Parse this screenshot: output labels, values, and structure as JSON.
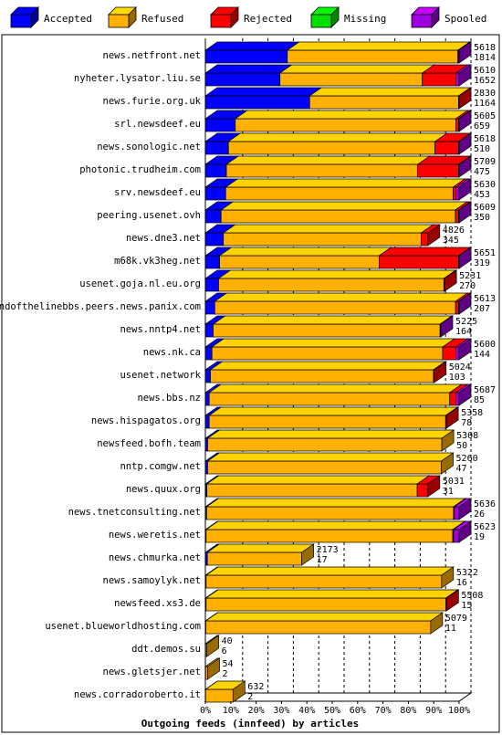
{
  "chart_data": {
    "type": "bar",
    "orientation": "horizontal",
    "stacked": true,
    "unit": "percent",
    "title": "Outgoing feeds (innfeed) by articles",
    "xlim": [
      0,
      100
    ],
    "grid": true,
    "legend_position": "top",
    "x_ticks": [
      "0%",
      "10%",
      "20%",
      "30%",
      "40%",
      "50%",
      "60%",
      "70%",
      "80%",
      "90%",
      "100%"
    ],
    "series": [
      {
        "name": "Accepted",
        "color": "#0000ff"
      },
      {
        "name": "Refused",
        "color": "#ffb000"
      },
      {
        "name": "Rejected",
        "color": "#ff0000"
      },
      {
        "name": "Missing",
        "color": "#00e000"
      },
      {
        "name": "Spooled",
        "color": "#a000e0"
      }
    ],
    "rows": [
      {
        "label": "news.netfront.net",
        "total": "5618",
        "accepted_count": "1814",
        "accepted": 32.3,
        "refused": 67.2,
        "rejected": 0.3,
        "missing": 0,
        "spooled": 0.2
      },
      {
        "label": "nyheter.lysator.liu.se",
        "total": "5610",
        "accepted_count": "1652",
        "accepted": 29.4,
        "refused": 56.1,
        "rejected": 13.3,
        "missing": 0,
        "spooled": 1.2
      },
      {
        "label": "news.furie.org.uk",
        "total": "2830",
        "accepted_count": "1164",
        "accepted": 41.1,
        "refused": 58.7,
        "rejected": 0.2,
        "missing": 0,
        "spooled": 0
      },
      {
        "label": "srl.newsdeef.eu",
        "total": "5605",
        "accepted_count": "659",
        "accepted": 11.8,
        "refused": 86.9,
        "rejected": 1.1,
        "missing": 0,
        "spooled": 0.2
      },
      {
        "label": "news.sonologic.net",
        "total": "5618",
        "accepted_count": "510",
        "accepted": 9.1,
        "refused": 81.4,
        "rejected": 9.3,
        "missing": 0,
        "spooled": 0.2
      },
      {
        "label": "photonic.trudheim.com",
        "total": "5709",
        "accepted_count": "475",
        "accepted": 8.3,
        "refused": 75.4,
        "rejected": 16.1,
        "missing": 0,
        "spooled": 0.2
      },
      {
        "label": "srv.newsdeef.eu",
        "total": "5630",
        "accepted_count": "453",
        "accepted": 8.0,
        "refused": 89.6,
        "rejected": 1.2,
        "missing": 0,
        "spooled": 1.2
      },
      {
        "label": "peering.usenet.ovh",
        "total": "5609",
        "accepted_count": "350",
        "accepted": 6.2,
        "refused": 92.3,
        "rejected": 1.3,
        "missing": 0,
        "spooled": 0.2
      },
      {
        "label": "news.dne3.net",
        "total": "4826",
        "accepted_count": "345",
        "accepted": 7.1,
        "refused": 78.0,
        "rejected": 2.6,
        "missing": 0,
        "spooled": 0
      },
      {
        "label": "m68k.vk3heg.net",
        "total": "5651",
        "accepted_count": "319",
        "accepted": 5.6,
        "refused": 62.9,
        "rejected": 31.3,
        "missing": 0,
        "spooled": 0.2
      },
      {
        "label": "usenet.goja.nl.eu.org",
        "total": "5231",
        "accepted_count": "270",
        "accepted": 5.2,
        "refused": 88.8,
        "rejected": 0.3,
        "missing": 0,
        "spooled": 0
      },
      {
        "label": "endofthelinebbs.peers.news.panix.com",
        "total": "5613",
        "accepted_count": "207",
        "accepted": 3.7,
        "refused": 94.9,
        "rejected": 1.2,
        "missing": 0,
        "spooled": 0.2
      },
      {
        "label": "news.nntp4.net",
        "total": "5225",
        "accepted_count": "164",
        "accepted": 3.1,
        "refused": 89.4,
        "rejected": 0,
        "missing": 0,
        "spooled": 0.3
      },
      {
        "label": "news.nk.ca",
        "total": "5600",
        "accepted_count": "144",
        "accepted": 2.6,
        "refused": 90.9,
        "rejected": 5.3,
        "missing": 0,
        "spooled": 1.2
      },
      {
        "label": "usenet.network",
        "total": "5024",
        "accepted_count": "103",
        "accepted": 2.0,
        "refused": 87.9,
        "rejected": 0.3,
        "missing": 0,
        "spooled": 0
      },
      {
        "label": "news.bbs.nz",
        "total": "5687",
        "accepted_count": "85",
        "accepted": 1.5,
        "refused": 94.8,
        "rejected": 2.4,
        "missing": 0,
        "spooled": 1.3
      },
      {
        "label": "news.hispagatos.org",
        "total": "5358",
        "accrepted_note": "",
        "accepted_count": "78",
        "accepted": 1.5,
        "refused": 93.2,
        "rejected": 0.3,
        "missing": 0,
        "spooled": 0
      },
      {
        "label": "newsfeed.bofh.team",
        "total": "5308",
        "accepted_count": "50",
        "accepted": 0.9,
        "refused": 92.3,
        "rejected": 0,
        "missing": 0,
        "spooled": 0
      },
      {
        "label": "nntp.comgw.net",
        "total": "5260",
        "accepted_count": "47",
        "accepted": 0.9,
        "refused": 92.1,
        "rejected": 0,
        "missing": 0,
        "spooled": 0
      },
      {
        "label": "news.quux.org",
        "total": "5031",
        "accepted_count": "31",
        "accepted": 0.6,
        "refused": 82.9,
        "rejected": 4.2,
        "missing": 0,
        "spooled": 0
      },
      {
        "label": "news.tnetconsulting.net",
        "total": "5636",
        "accepted_count": "26",
        "accepted": 0.5,
        "refused": 97.3,
        "rejected": 0.3,
        "missing": 0,
        "spooled": 1.9
      },
      {
        "label": "news.weretis.net",
        "total": "5623",
        "accepted_count": "19",
        "accepted": 0.3,
        "refused": 97.2,
        "rejected": 0.3,
        "missing": 0,
        "spooled": 2.2
      },
      {
        "label": "news.chmurka.net",
        "total": "2173",
        "accepted_count": "17",
        "accepted": 0.8,
        "refused": 37.2,
        "rejected": 0,
        "missing": 0,
        "spooled": 0
      },
      {
        "label": "news.samoylyk.net",
        "total": "5322",
        "accepted_count": "16",
        "accepted": 0.3,
        "refused": 92.8,
        "rejected": 0,
        "missing": 0,
        "spooled": 0
      },
      {
        "label": "newsfeed.xs3.de",
        "total": "5508",
        "accepted_count": "15",
        "accepted": 0.3,
        "refused": 94.5,
        "rejected": 0.3,
        "missing": 0,
        "spooled": 0
      },
      {
        "label": "usenet.blueworldhosting.com",
        "total": "5079",
        "accepted_count": "11",
        "accepted": 0.2,
        "refused": 88.6,
        "rejected": 0,
        "missing": 0,
        "spooled": 0
      },
      {
        "label": "ddt.demos.su",
        "total": "40",
        "accepted_count": "6",
        "accepted": 0.1,
        "refused": 0.5,
        "rejected": 0,
        "missing": 0,
        "spooled": 0
      },
      {
        "label": "news.gletsjer.net",
        "total": "54",
        "accepted_count": "2",
        "accepted": 0.1,
        "refused": 0.8,
        "rejected": 0,
        "missing": 0,
        "spooled": 0
      },
      {
        "label": "news.corradoroberto.it",
        "total": "632",
        "accepted_count": "2",
        "accepted": 0.1,
        "refused": 10.8,
        "rejected": 0,
        "missing": 0,
        "spooled": 0
      }
    ]
  }
}
